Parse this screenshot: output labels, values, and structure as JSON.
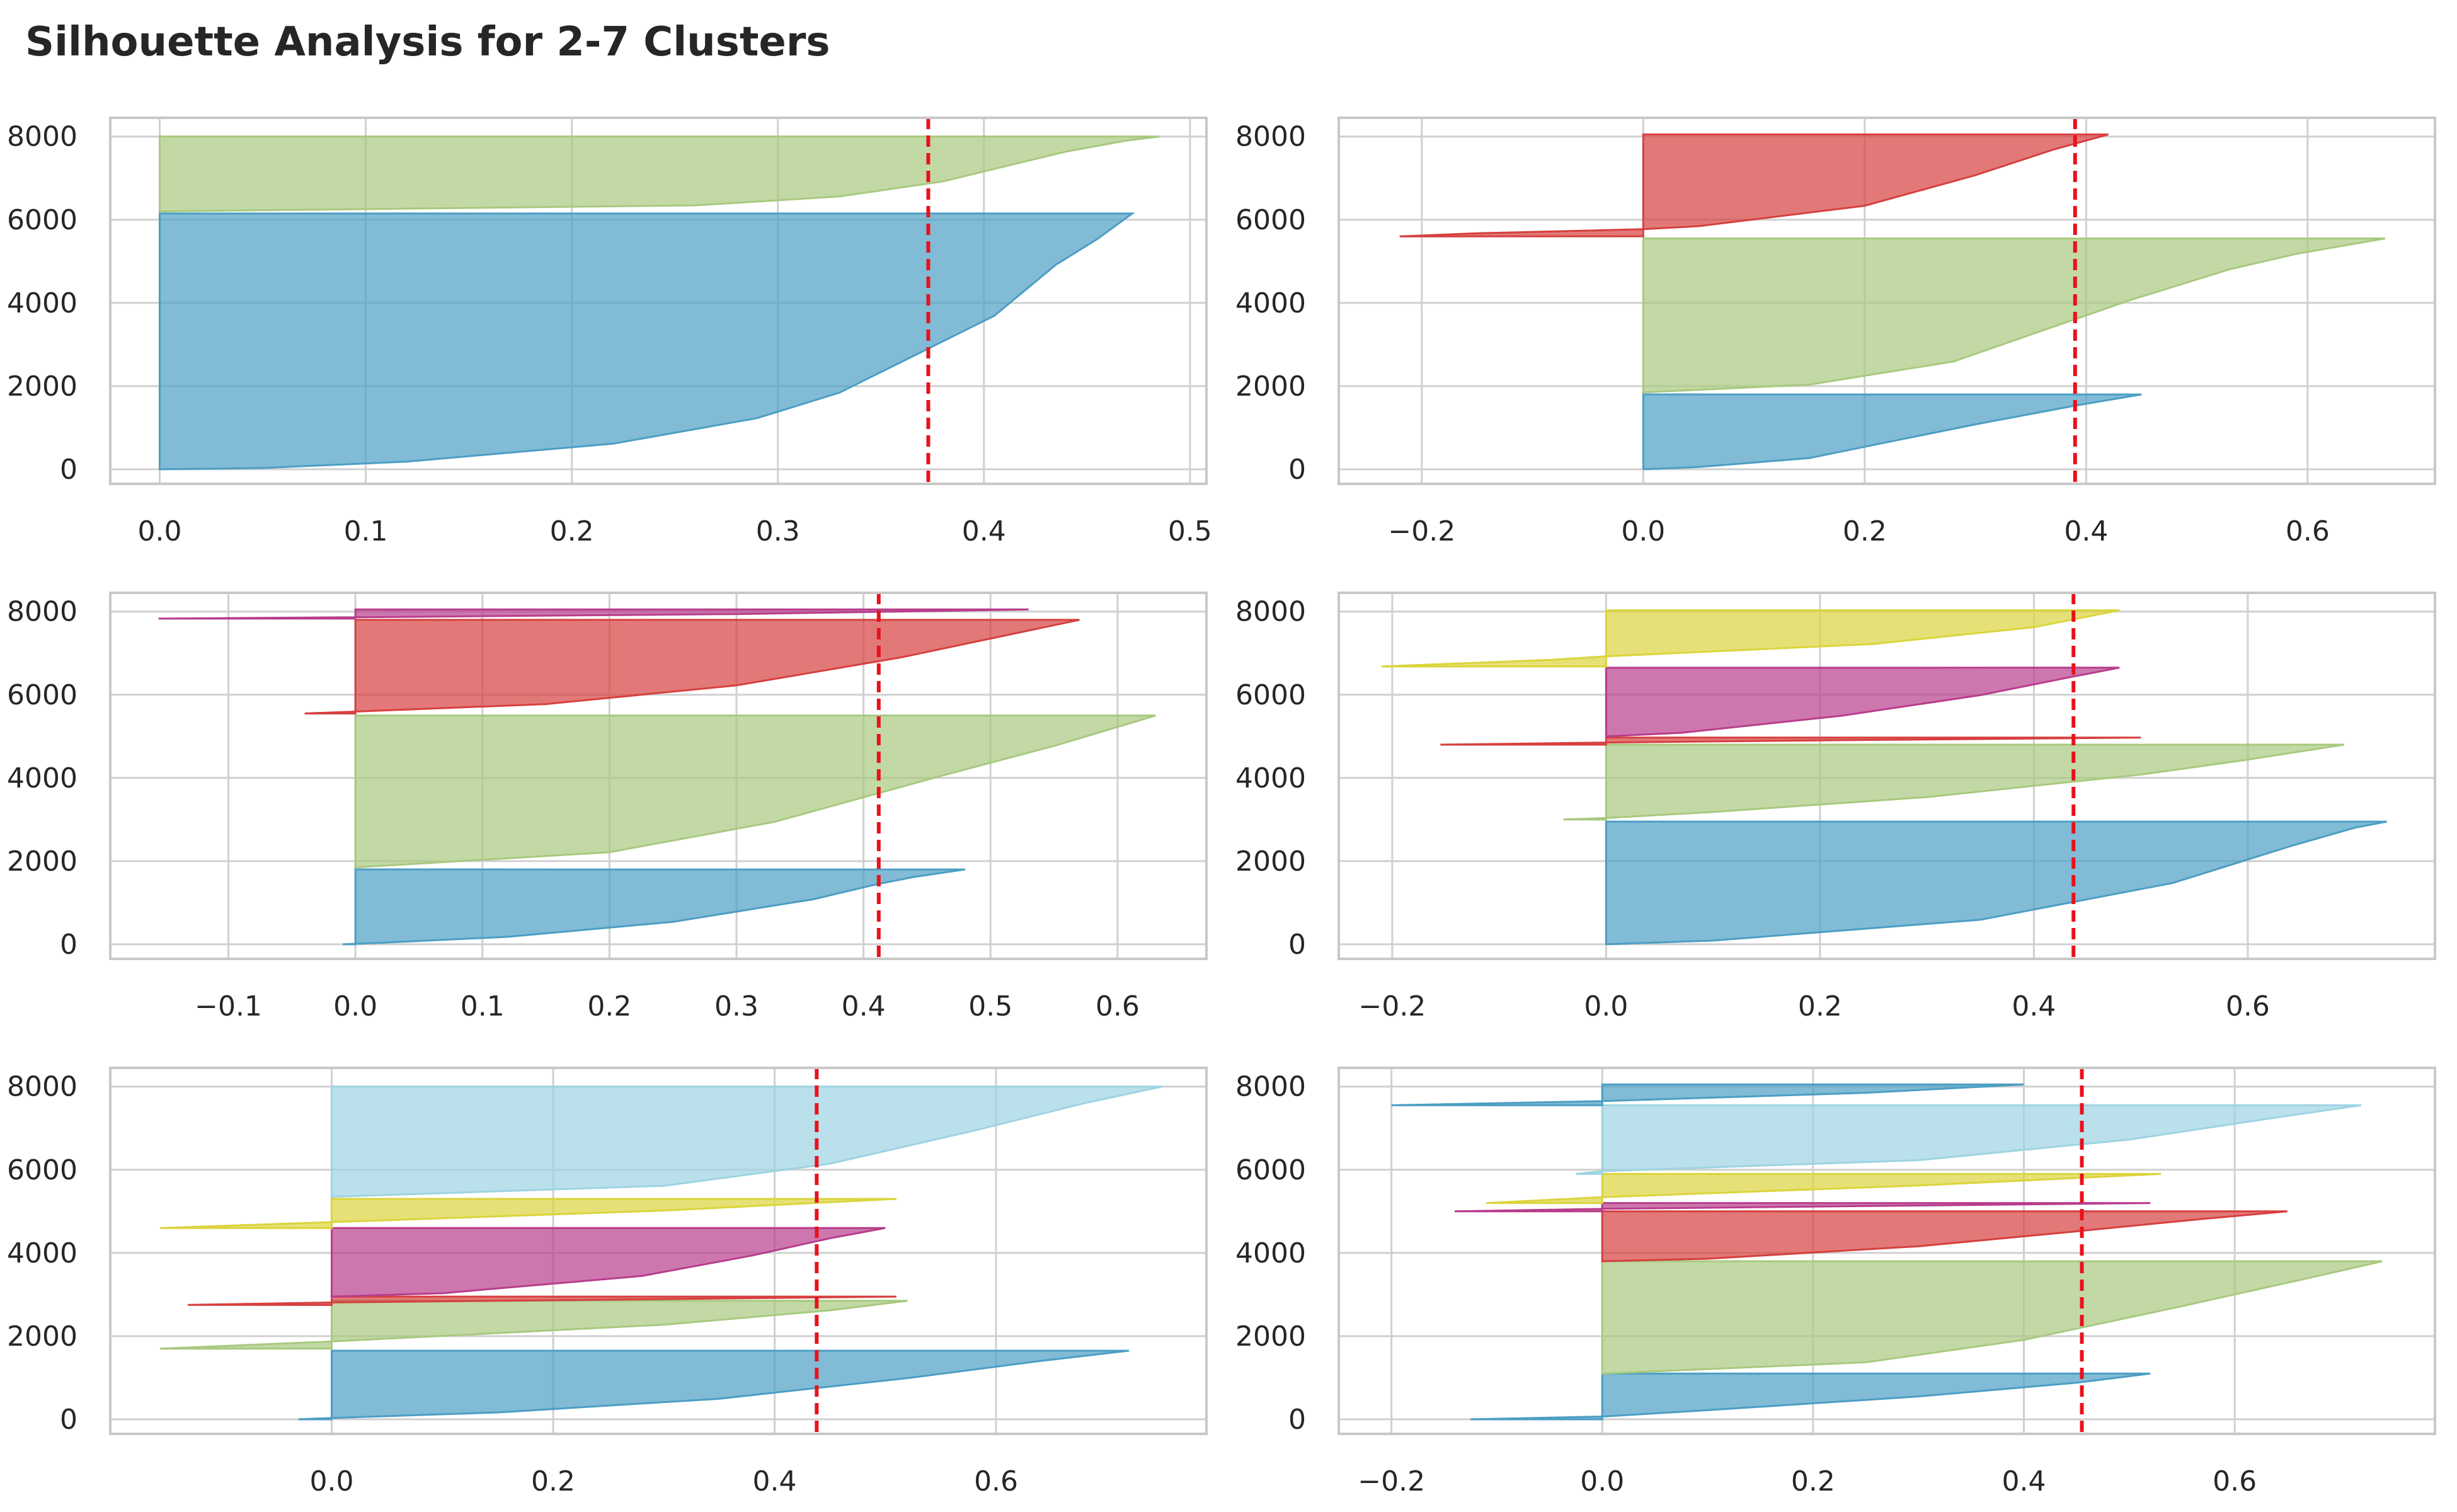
{
  "title": "Silhouette Analysis for 2-7 Clusters",
  "colors": {
    "blue": "#4c9ec4",
    "green": "#a8c97f",
    "red": "#d6403f",
    "magenta": "#b83d8c",
    "yellow": "#dbd43c",
    "lightblue": "#9dd3e2",
    "average_line": "#e8121b",
    "grid": "#d0d0d0",
    "frame": "#c8c8c8"
  },
  "chart_data": [
    {
      "type": "area",
      "n_clusters": 2,
      "xlim": [
        -0.024,
        0.508
      ],
      "ylim": [
        -350,
        8450
      ],
      "xticks": [
        0.0,
        0.1,
        0.2,
        0.3,
        0.4,
        0.5
      ],
      "xtick_labels": [
        "0.0",
        "0.1",
        "0.2",
        "0.3",
        "0.4",
        "0.5"
      ],
      "yticks": [
        0,
        2000,
        4000,
        6000,
        8000
      ],
      "ytick_labels": [
        "0",
        "2000",
        "4000",
        "6000",
        "8000"
      ],
      "average_silhouette": 0.373,
      "clusters": [
        {
          "color": "blue",
          "y_start": 0,
          "y_end": 6150,
          "profile": [
            [
              0,
              0.0
            ],
            [
              0.005,
              0.05
            ],
            [
              0.03,
              0.12
            ],
            [
              0.1,
              0.22
            ],
            [
              0.2,
              0.29
            ],
            [
              0.3,
              0.33
            ],
            [
              0.4,
              0.355
            ],
            [
              0.5,
              0.38
            ],
            [
              0.6,
              0.405
            ],
            [
              0.7,
              0.42
            ],
            [
              0.8,
              0.435
            ],
            [
              0.9,
              0.455
            ],
            [
              1.0,
              0.472
            ]
          ]
        },
        {
          "color": "green",
          "y_start": 6200,
          "y_end": 8000,
          "profile": [
            [
              0,
              0.0
            ],
            [
              0.08,
              0.26
            ],
            [
              0.2,
              0.33
            ],
            [
              0.4,
              0.38
            ],
            [
              0.6,
              0.41
            ],
            [
              0.8,
              0.44
            ],
            [
              0.95,
              0.47
            ],
            [
              1.0,
              0.485
            ]
          ]
        }
      ]
    },
    {
      "type": "area",
      "n_clusters": 3,
      "xlim": [
        -0.275,
        0.715
      ],
      "ylim": [
        -350,
        8450
      ],
      "xticks": [
        -0.2,
        0.0,
        0.2,
        0.4,
        0.6
      ],
      "xtick_labels": [
        "−0.2",
        "0.0",
        "0.2",
        "0.4",
        "0.6"
      ],
      "yticks": [
        0,
        2000,
        4000,
        6000,
        8000
      ],
      "ytick_labels": [
        "0",
        "2000",
        "4000",
        "6000",
        "8000"
      ],
      "average_silhouette": 0.39,
      "clusters": [
        {
          "color": "blue",
          "y_start": 0,
          "y_end": 1800,
          "profile": [
            [
              0,
              0.0
            ],
            [
              0.03,
              0.05
            ],
            [
              0.15,
              0.15
            ],
            [
              0.3,
              0.2
            ],
            [
              0.6,
              0.3
            ],
            [
              0.85,
              0.39
            ],
            [
              1.0,
              0.45
            ]
          ]
        },
        {
          "color": "green",
          "y_start": 1850,
          "y_end": 5550,
          "profile": [
            [
              0,
              0.0
            ],
            [
              0.05,
              0.15
            ],
            [
              0.2,
              0.28
            ],
            [
              0.4,
              0.36
            ],
            [
              0.6,
              0.44
            ],
            [
              0.8,
              0.53
            ],
            [
              0.9,
              0.59
            ],
            [
              1.0,
              0.67
            ]
          ]
        },
        {
          "color": "red",
          "y_start": 5600,
          "y_end": 8050,
          "profile": [
            [
              0,
              -0.22
            ],
            [
              0.03,
              -0.15
            ],
            [
              0.07,
              0.0
            ],
            [
              0.1,
              0.05
            ],
            [
              0.3,
              0.2
            ],
            [
              0.6,
              0.3
            ],
            [
              0.85,
              0.37
            ],
            [
              1.0,
              0.42
            ]
          ]
        }
      ]
    },
    {
      "type": "area",
      "n_clusters": 4,
      "xlim": [
        -0.193,
        0.67
      ],
      "ylim": [
        -350,
        8450
      ],
      "xticks": [
        -0.1,
        0.0,
        0.1,
        0.2,
        0.3,
        0.4,
        0.5,
        0.6
      ],
      "xtick_labels": [
        "−0.1",
        "0.0",
        "0.1",
        "0.2",
        "0.3",
        "0.4",
        "0.5",
        "0.6"
      ],
      "yticks": [
        0,
        2000,
        4000,
        6000,
        8000
      ],
      "ytick_labels": [
        "0",
        "2000",
        "4000",
        "6000",
        "8000"
      ],
      "average_silhouette": 0.412,
      "clusters": [
        {
          "color": "blue",
          "y_start": 0,
          "y_end": 1800,
          "profile": [
            [
              0,
              -0.01
            ],
            [
              0.02,
              0.02
            ],
            [
              0.1,
              0.12
            ],
            [
              0.3,
              0.25
            ],
            [
              0.6,
              0.36
            ],
            [
              0.8,
              0.41
            ],
            [
              0.9,
              0.44
            ],
            [
              1.0,
              0.48
            ]
          ]
        },
        {
          "color": "green",
          "y_start": 1850,
          "y_end": 5500,
          "profile": [
            [
              0,
              0.0
            ],
            [
              0.1,
              0.2
            ],
            [
              0.3,
              0.33
            ],
            [
              0.6,
              0.46
            ],
            [
              0.8,
              0.55
            ],
            [
              0.9,
              0.59
            ],
            [
              1.0,
              0.63
            ]
          ]
        },
        {
          "color": "red",
          "y_start": 5550,
          "y_end": 7800,
          "profile": [
            [
              0,
              -0.04
            ],
            [
              0.02,
              0.0
            ],
            [
              0.1,
              0.15
            ],
            [
              0.3,
              0.3
            ],
            [
              0.6,
              0.43
            ],
            [
              0.8,
              0.5
            ],
            [
              1.0,
              0.57
            ]
          ]
        },
        {
          "color": "magenta",
          "y_start": 7830,
          "y_end": 8050,
          "profile": [
            [
              0,
              -0.155
            ],
            [
              0.15,
              0.0
            ],
            [
              0.5,
              0.3
            ],
            [
              1.0,
              0.53
            ]
          ]
        }
      ]
    },
    {
      "type": "area",
      "n_clusters": 5,
      "xlim": [
        -0.25,
        0.775
      ],
      "ylim": [
        -350,
        8450
      ],
      "xticks": [
        -0.2,
        0.0,
        0.2,
        0.4,
        0.6
      ],
      "xtick_labels": [
        "−0.2",
        "0.0",
        "0.2",
        "0.4",
        "0.6"
      ],
      "yticks": [
        0,
        2000,
        4000,
        6000,
        8000
      ],
      "ytick_labels": [
        "0",
        "2000",
        "4000",
        "6000",
        "8000"
      ],
      "average_silhouette": 0.437,
      "clusters": [
        {
          "color": "blue",
          "y_start": 0,
          "y_end": 2950,
          "profile": [
            [
              0,
              0.0
            ],
            [
              0.03,
              0.1
            ],
            [
              0.2,
              0.35
            ],
            [
              0.5,
              0.53
            ],
            [
              0.8,
              0.64
            ],
            [
              0.95,
              0.7
            ],
            [
              1.0,
              0.73
            ]
          ]
        },
        {
          "color": "green",
          "y_start": 3000,
          "y_end": 4800,
          "profile": [
            [
              0,
              -0.04
            ],
            [
              0.02,
              0.0
            ],
            [
              0.1,
              0.1
            ],
            [
              0.3,
              0.3
            ],
            [
              0.6,
              0.5
            ],
            [
              0.8,
              0.6
            ],
            [
              1.0,
              0.69
            ]
          ]
        },
        {
          "color": "red",
          "y_start": 4800,
          "y_end": 4970,
          "profile": [
            [
              0,
              -0.155
            ],
            [
              0.3,
              0.0
            ],
            [
              0.6,
              0.2
            ],
            [
              1.0,
              0.5
            ]
          ]
        },
        {
          "color": "magenta",
          "y_start": 5000,
          "y_end": 6650,
          "profile": [
            [
              0,
              0.0
            ],
            [
              0.05,
              0.07
            ],
            [
              0.3,
              0.22
            ],
            [
              0.6,
              0.35
            ],
            [
              0.85,
              0.43
            ],
            [
              1.0,
              0.48
            ]
          ]
        },
        {
          "color": "yellow",
          "y_start": 6680,
          "y_end": 8030,
          "profile": [
            [
              0,
              -0.21
            ],
            [
              0.12,
              -0.05
            ],
            [
              0.18,
              0.0
            ],
            [
              0.4,
              0.25
            ],
            [
              0.7,
              0.4
            ],
            [
              1.0,
              0.48
            ]
          ]
        }
      ]
    },
    {
      "type": "area",
      "n_clusters": 6,
      "xlim": [
        -0.2,
        0.79
      ],
      "ylim": [
        -350,
        8450
      ],
      "xticks": [
        0.0,
        0.2,
        0.4,
        0.6
      ],
      "xtick_labels": [
        "0.0",
        "0.2",
        "0.4",
        "0.6"
      ],
      "yticks": [
        0,
        2000,
        4000,
        6000,
        8000
      ],
      "ytick_labels": [
        "0",
        "2000",
        "4000",
        "6000",
        "8000"
      ],
      "average_silhouette": 0.438,
      "clusters": [
        {
          "color": "blue",
          "y_start": 0,
          "y_end": 1650,
          "profile": [
            [
              0,
              -0.03
            ],
            [
              0.02,
              0.0
            ],
            [
              0.1,
              0.15
            ],
            [
              0.3,
              0.35
            ],
            [
              0.6,
              0.52
            ],
            [
              0.85,
              0.64
            ],
            [
              1.0,
              0.72
            ]
          ]
        },
        {
          "color": "green",
          "y_start": 1700,
          "y_end": 2850,
          "profile": [
            [
              0,
              -0.155
            ],
            [
              0.15,
              0.0
            ],
            [
              0.5,
              0.3
            ],
            [
              0.8,
              0.45
            ],
            [
              1.0,
              0.52
            ]
          ]
        },
        {
          "color": "red",
          "y_start": 2750,
          "y_end": 2950,
          "profile": [
            [
              0,
              -0.13
            ],
            [
              0.3,
              0.0
            ],
            [
              0.7,
              0.3
            ],
            [
              1.0,
              0.51
            ]
          ]
        },
        {
          "color": "magenta",
          "y_start": 2950,
          "y_end": 4600,
          "profile": [
            [
              0,
              0.0
            ],
            [
              0.05,
              0.1
            ],
            [
              0.3,
              0.28
            ],
            [
              0.6,
              0.38
            ],
            [
              0.85,
              0.45
            ],
            [
              1.0,
              0.5
            ]
          ]
        },
        {
          "color": "yellow",
          "y_start": 4600,
          "y_end": 5300,
          "profile": [
            [
              0,
              -0.155
            ],
            [
              0.2,
              0.0
            ],
            [
              0.6,
              0.3
            ],
            [
              1.0,
              0.51
            ]
          ]
        },
        {
          "color": "lightblue",
          "y_start": 5350,
          "y_end": 8000,
          "profile": [
            [
              0,
              0.0
            ],
            [
              0.1,
              0.3
            ],
            [
              0.3,
              0.45
            ],
            [
              0.6,
              0.58
            ],
            [
              0.85,
              0.68
            ],
            [
              1.0,
              0.75
            ]
          ]
        }
      ]
    },
    {
      "type": "area",
      "n_clusters": 7,
      "xlim": [
        -0.25,
        0.79
      ],
      "ylim": [
        -350,
        8450
      ],
      "xticks": [
        -0.2,
        0.0,
        0.2,
        0.4,
        0.6
      ],
      "xtick_labels": [
        "−0.2",
        "0.0",
        "0.2",
        "0.4",
        "0.6"
      ],
      "yticks": [
        0,
        2000,
        4000,
        6000,
        8000
      ],
      "ytick_labels": [
        "0",
        "2000",
        "4000",
        "6000",
        "8000"
      ],
      "average_silhouette": 0.455,
      "clusters": [
        {
          "color": "blue",
          "y_start": 0,
          "y_end": 1100,
          "profile": [
            [
              0,
              -0.125
            ],
            [
              0.06,
              0.0
            ],
            [
              0.2,
              0.1
            ],
            [
              0.5,
              0.3
            ],
            [
              0.8,
              0.45
            ],
            [
              1.0,
              0.52
            ]
          ]
        },
        {
          "color": "green",
          "y_start": 1100,
          "y_end": 3800,
          "profile": [
            [
              0,
              0.0
            ],
            [
              0.1,
              0.25
            ],
            [
              0.3,
              0.4
            ],
            [
              0.6,
              0.55
            ],
            [
              0.85,
              0.67
            ],
            [
              1.0,
              0.74
            ]
          ]
        },
        {
          "color": "red",
          "y_start": 3800,
          "y_end": 5000,
          "profile": [
            [
              0,
              0.0
            ],
            [
              0.05,
              0.1
            ],
            [
              0.3,
              0.3
            ],
            [
              0.6,
              0.45
            ],
            [
              0.85,
              0.57
            ],
            [
              1.0,
              0.65
            ]
          ]
        },
        {
          "color": "magenta",
          "y_start": 5000,
          "y_end": 5200,
          "profile": [
            [
              0,
              -0.14
            ],
            [
              0.3,
              0.0
            ],
            [
              0.7,
              0.3
            ],
            [
              1.0,
              0.52
            ]
          ]
        },
        {
          "color": "yellow",
          "y_start": 5200,
          "y_end": 5900,
          "profile": [
            [
              0,
              -0.11
            ],
            [
              0.2,
              0.0
            ],
            [
              0.6,
              0.3
            ],
            [
              1.0,
              0.53
            ]
          ]
        },
        {
          "color": "lightblue",
          "y_start": 5900,
          "y_end": 7550,
          "profile": [
            [
              0,
              -0.025
            ],
            [
              0.04,
              0.0
            ],
            [
              0.2,
              0.3
            ],
            [
              0.5,
              0.5
            ],
            [
              0.8,
              0.63
            ],
            [
              1.0,
              0.72
            ]
          ]
        },
        {
          "color": "blue",
          "y_start": 7550,
          "y_end": 8050,
          "profile": [
            [
              0,
              -0.2
            ],
            [
              0.2,
              0.0
            ],
            [
              0.6,
              0.25
            ],
            [
              1.0,
              0.4
            ]
          ]
        }
      ]
    }
  ]
}
